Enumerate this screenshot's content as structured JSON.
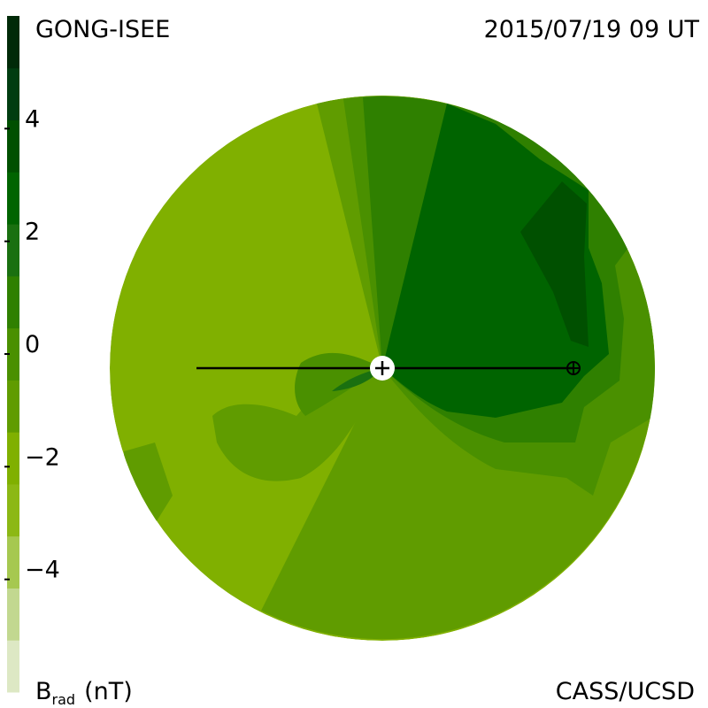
{
  "header": {
    "left": "GONG-ISEE",
    "right": "2015/07/19 09 UT"
  },
  "footer": {
    "quantity": "B",
    "subscript": "rad",
    "unit": "(nT)",
    "right": "CASS/UCSD"
  },
  "colorbar": {
    "ylim": [
      -6,
      6
    ],
    "yticks": [
      {
        "value": 4,
        "label": "4"
      },
      {
        "value": 2,
        "label": "2"
      },
      {
        "value": 0,
        "label": "0"
      },
      {
        "value": -2,
        "label": "−2"
      },
      {
        "value": -4,
        "label": "−4"
      }
    ],
    "colors": [
      "#dde8c4",
      "#c2d890",
      "#a6c850",
      "#8cb814",
      "#80b000",
      "#609c00",
      "#4a9000",
      "#2f8000",
      "#1a7010",
      "#006400",
      "#005000",
      "#003d10",
      "#002a08"
    ]
  }
}
